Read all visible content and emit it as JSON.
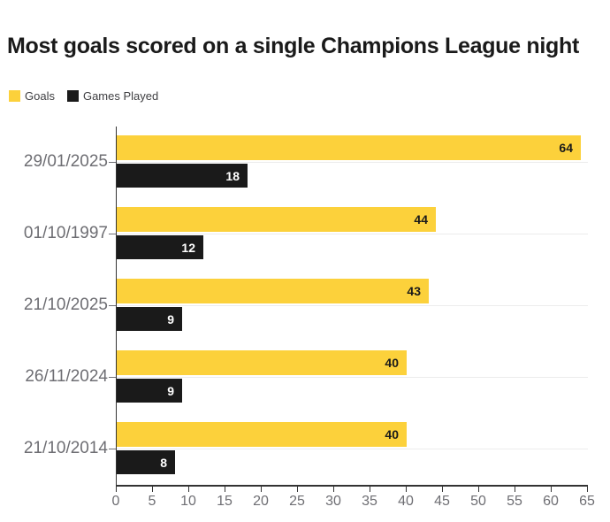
{
  "title": "Most goals scored on a single Champions League night",
  "colors": {
    "goals": "#FCD13B",
    "games_played": "#1A1A1A",
    "axis": "#333333",
    "tick_label": "#6E6E73",
    "category_label": "#6E6E73",
    "gridline": "#ECECEC",
    "title_text": "#1A1A1A",
    "value_on_goals": "#1A1A1A",
    "value_on_games": "#FFFFFF"
  },
  "legend": {
    "items": [
      {
        "label": "Goals",
        "color": "#FCD13B"
      },
      {
        "label": "Games Played",
        "color": "#1A1A1A"
      }
    ]
  },
  "chart_data": {
    "type": "bar",
    "orientation": "horizontal",
    "title": "Most goals scored on a single Champions League night",
    "categories": [
      "29/01/2025",
      "01/10/1997",
      "21/10/2025",
      "26/11/2024",
      "21/10/2014"
    ],
    "series": [
      {
        "name": "Goals",
        "color": "#FCD13B",
        "values": [
          64,
          44,
          43,
          40,
          40
        ]
      },
      {
        "name": "Games Played",
        "color": "#1A1A1A",
        "values": [
          18,
          12,
          9,
          9,
          8
        ]
      }
    ],
    "xlim": [
      0,
      65
    ],
    "xticks": [
      0,
      5,
      10,
      15,
      20,
      25,
      30,
      35,
      40,
      45,
      50,
      55,
      60,
      65
    ],
    "xlabel": "",
    "ylabel": "",
    "value_labels": true,
    "legend_position": "top-left",
    "grid": "category-center-lines"
  }
}
